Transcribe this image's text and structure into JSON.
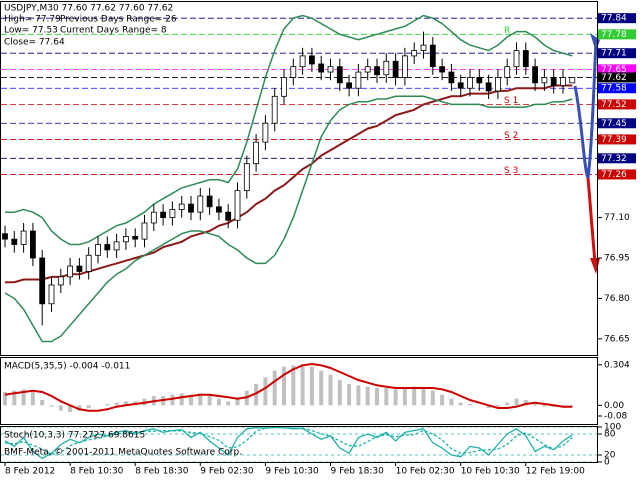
{
  "chart_data": [
    {
      "type": "candlestick",
      "title": "USDJPY,M30  77.60 77.62 77.60 77.62",
      "annotations": [
        "High= 77.79",
        "Previous Days Range= 26",
        "Low= 77.53",
        "Current Days Range= 8",
        "Close= 77.64"
      ],
      "categories": [
        "8 Feb 2012",
        null,
        null,
        null,
        null,
        null,
        null,
        "8 Feb 10:30",
        null,
        null,
        null,
        null,
        null,
        null,
        "8 Feb 18:30",
        null,
        null,
        null,
        null,
        null,
        null,
        "9 Feb 02:30",
        null,
        null,
        null,
        null,
        null,
        null,
        "9 Feb 10:30",
        null,
        null,
        null,
        null,
        null,
        null,
        "9 Feb 18:30",
        null,
        null,
        null,
        null,
        null,
        null,
        "10 Feb 02:30",
        null,
        null,
        null,
        null,
        null,
        null,
        "10 Feb 10:30",
        null,
        null,
        null,
        null,
        null,
        null,
        "12 Feb 19:00",
        null,
        null,
        null,
        null,
        null
      ],
      "open": [
        77.04,
        77.02,
        77.0,
        77.05,
        76.95,
        76.78,
        76.85,
        76.88,
        76.92,
        76.9,
        76.96,
        77.0,
        76.98,
        77.01,
        77.03,
        77.02,
        77.08,
        77.12,
        77.1,
        77.13,
        77.15,
        77.12,
        77.18,
        77.14,
        77.12,
        77.09,
        77.2,
        77.3,
        77.38,
        77.45,
        77.55,
        77.62,
        77.66,
        77.7,
        77.67,
        77.64,
        77.66,
        77.6,
        77.58,
        77.64,
        77.66,
        77.63,
        77.68,
        77.62,
        77.7,
        77.72,
        77.74,
        77.66,
        77.64,
        77.6,
        77.58,
        77.62,
        77.6,
        77.57,
        77.62,
        77.66,
        77.72,
        77.66,
        77.6,
        77.62,
        77.59,
        77.6
      ],
      "high": [
        77.07,
        77.05,
        77.08,
        77.08,
        76.98,
        76.88,
        76.91,
        76.95,
        76.95,
        76.99,
        77.03,
        77.03,
        77.04,
        77.06,
        77.06,
        77.11,
        77.15,
        77.15,
        77.16,
        77.18,
        77.18,
        77.21,
        77.21,
        77.17,
        77.15,
        77.23,
        77.33,
        77.41,
        77.48,
        77.58,
        77.65,
        77.69,
        77.73,
        77.73,
        77.7,
        77.69,
        77.69,
        77.63,
        77.67,
        77.69,
        77.69,
        77.71,
        77.71,
        77.73,
        77.75,
        77.79,
        77.77,
        77.69,
        77.67,
        77.63,
        77.65,
        77.65,
        77.63,
        77.65,
        77.69,
        77.75,
        77.75,
        77.69,
        77.65,
        77.65,
        77.65,
        77.62
      ],
      "low": [
        76.99,
        76.97,
        76.97,
        76.92,
        76.7,
        76.75,
        76.82,
        76.85,
        76.87,
        76.87,
        76.93,
        76.95,
        76.95,
        76.98,
        76.99,
        76.99,
        77.05,
        77.07,
        77.07,
        77.1,
        77.09,
        77.09,
        77.11,
        77.09,
        77.06,
        77.06,
        77.17,
        77.27,
        77.35,
        77.42,
        77.52,
        77.59,
        77.63,
        77.64,
        77.61,
        77.61,
        77.57,
        77.55,
        77.55,
        77.61,
        77.6,
        77.6,
        77.59,
        77.59,
        77.67,
        77.69,
        77.63,
        77.61,
        77.57,
        77.55,
        77.55,
        77.57,
        77.54,
        77.54,
        77.59,
        77.63,
        77.63,
        77.57,
        77.57,
        77.56,
        77.56,
        77.6
      ],
      "close": [
        77.02,
        77.0,
        77.05,
        76.95,
        76.78,
        76.85,
        76.88,
        76.92,
        76.9,
        76.96,
        77.0,
        76.98,
        77.01,
        77.03,
        77.02,
        77.08,
        77.12,
        77.1,
        77.13,
        77.15,
        77.12,
        77.18,
        77.14,
        77.12,
        77.09,
        77.2,
        77.3,
        77.38,
        77.45,
        77.55,
        77.62,
        77.66,
        77.7,
        77.67,
        77.64,
        77.66,
        77.6,
        77.58,
        77.64,
        77.66,
        77.63,
        77.68,
        77.62,
        77.7,
        77.72,
        77.74,
        77.66,
        77.64,
        77.6,
        77.58,
        77.62,
        77.6,
        77.57,
        77.62,
        77.66,
        77.72,
        77.66,
        77.6,
        77.62,
        77.59,
        77.62,
        77.62
      ],
      "series": [
        {
          "color": "#8b1a1a",
          "values": [
            76.86,
            76.86,
            76.87,
            76.87,
            76.87,
            76.88,
            76.88,
            76.89,
            76.89,
            76.9,
            76.91,
            76.92,
            76.93,
            76.94,
            76.95,
            76.96,
            76.97,
            76.99,
            77.0,
            77.01,
            77.03,
            77.04,
            77.05,
            77.07,
            77.08,
            77.1,
            77.12,
            77.15,
            77.17,
            77.2,
            77.22,
            77.25,
            77.28,
            77.3,
            77.33,
            77.35,
            77.37,
            77.39,
            77.41,
            77.43,
            77.44,
            77.46,
            77.48,
            77.49,
            77.5,
            77.52,
            77.53,
            77.54,
            77.55,
            77.55,
            77.56,
            77.56,
            77.56,
            77.57,
            77.57,
            77.58,
            77.58,
            77.58,
            77.58,
            77.59,
            77.59,
            77.59
          ]
        },
        {
          "color": "#2e8b57",
          "values": [
            77.12,
            77.12,
            77.13,
            77.12,
            77.1,
            77.05,
            77.02,
            77.0,
            77.0,
            77.01,
            77.03,
            77.05,
            77.07,
            77.08,
            77.1,
            77.12,
            77.15,
            77.17,
            77.19,
            77.21,
            77.22,
            77.23,
            77.24,
            77.24,
            77.23,
            77.28,
            77.38,
            77.5,
            77.62,
            77.72,
            77.8,
            77.84,
            77.85,
            77.84,
            77.82,
            77.8,
            77.78,
            77.77,
            77.76,
            77.77,
            77.78,
            77.79,
            77.8,
            77.81,
            77.83,
            77.85,
            77.84,
            77.82,
            77.79,
            77.76,
            77.74,
            77.73,
            77.72,
            77.74,
            77.77,
            77.79,
            77.79,
            77.77,
            77.74,
            77.72,
            77.71,
            77.7
          ]
        },
        {
          "color": "#2e8b57",
          "values": [
            76.82,
            76.8,
            76.76,
            76.7,
            76.64,
            76.64,
            76.66,
            76.7,
            76.74,
            76.78,
            76.82,
            76.86,
            76.89,
            76.91,
            76.94,
            76.96,
            76.98,
            77.0,
            77.02,
            77.04,
            77.05,
            77.05,
            77.04,
            77.03,
            77.0,
            76.98,
            76.95,
            76.93,
            76.93,
            76.96,
            77.02,
            77.1,
            77.2,
            77.3,
            77.4,
            77.46,
            77.5,
            77.52,
            77.53,
            77.53,
            77.54,
            77.54,
            77.55,
            77.55,
            77.55,
            77.55,
            77.54,
            77.53,
            77.52,
            77.52,
            77.52,
            77.52,
            77.51,
            77.51,
            77.51,
            77.51,
            77.51,
            77.52,
            77.52,
            77.53,
            77.53,
            77.54
          ]
        }
      ],
      "levels": [
        {
          "value": 77.84,
          "color": "#000080"
        },
        {
          "value": 77.78,
          "color": "#32cd32",
          "name": "R"
        },
        {
          "value": 77.71,
          "color": "#000080"
        },
        {
          "value": 77.65,
          "color": "#ff00ff"
        },
        {
          "value": 77.62,
          "color": "#000000"
        },
        {
          "value": 77.58,
          "color": "#0000ff"
        },
        {
          "value": 77.52,
          "color": "#cc0000",
          "name": "S 1"
        },
        {
          "value": 77.45,
          "color": "#000080"
        },
        {
          "value": 77.39,
          "color": "#cc0000",
          "name": "S 2"
        },
        {
          "value": 77.32,
          "color": "#000080"
        },
        {
          "value": 77.26,
          "color": "#cc0000",
          "name": "S 3"
        }
      ],
      "ylim": [
        76.59,
        77.9
      ],
      "yticks": [
        76.65,
        {
          "value": 76.8,
          "label": "76.80"
        },
        76.95,
        {
          "value": 77.1,
          "label": "77.10"
        }
      ]
    },
    {
      "type": "macd",
      "title": "MACD(5,35,5) -0.004 -0.011",
      "values": [
        0.1,
        0.11,
        0.12,
        0.1,
        0.04,
        -0.01,
        -0.04,
        -0.05,
        -0.04,
        -0.02,
        0.0,
        0.01,
        0.02,
        0.03,
        0.03,
        0.05,
        0.07,
        0.07,
        0.08,
        0.09,
        0.08,
        0.09,
        0.07,
        0.05,
        0.03,
        0.06,
        0.11,
        0.16,
        0.21,
        0.26,
        0.29,
        0.3,
        0.31,
        0.29,
        0.26,
        0.23,
        0.19,
        0.16,
        0.15,
        0.14,
        0.13,
        0.13,
        0.12,
        0.13,
        0.14,
        0.14,
        0.11,
        0.08,
        0.05,
        0.02,
        0.01,
        0.0,
        -0.02,
        -0.01,
        0.02,
        0.05,
        0.04,
        0.01,
        -0.01,
        -0.01,
        -0.01,
        -0.004
      ],
      "color": "#c0c0c0",
      "signal": [
        0.08,
        0.09,
        0.1,
        0.11,
        0.1,
        0.07,
        0.03,
        0.0,
        -0.03,
        -0.04,
        -0.04,
        -0.03,
        -0.01,
        0.0,
        0.01,
        0.02,
        0.03,
        0.04,
        0.05,
        0.06,
        0.07,
        0.08,
        0.08,
        0.07,
        0.06,
        0.05,
        0.06,
        0.09,
        0.13,
        0.18,
        0.23,
        0.27,
        0.3,
        0.31,
        0.3,
        0.28,
        0.25,
        0.22,
        0.19,
        0.17,
        0.15,
        0.14,
        0.13,
        0.13,
        0.13,
        0.13,
        0.13,
        0.12,
        0.1,
        0.07,
        0.04,
        0.02,
        0.0,
        -0.02,
        -0.02,
        -0.01,
        0.01,
        0.02,
        0.01,
        0.0,
        -0.01,
        -0.011
      ],
      "signal_color": "#cc0000",
      "ylim": [
        -0.14,
        0.355
      ],
      "yticks": [
        -0.08,
        {
          "value": 0,
          "label": "0.00"
        },
        0.304
      ]
    },
    {
      "type": "stochastic",
      "title": "Stoch(10,3,3) 77.2727 69.8615",
      "series": [
        {
          "color": "#20b2aa",
          "values": [
            60,
            45,
            70,
            30,
            10,
            25,
            50,
            65,
            55,
            70,
            80,
            75,
            85,
            90,
            80,
            90,
            95,
            85,
            90,
            92,
            70,
            85,
            60,
            40,
            20,
            70,
            95,
            98,
            97,
            99,
            98,
            95,
            96,
            80,
            65,
            75,
            40,
            25,
            70,
            80,
            70,
            85,
            60,
            85,
            90,
            95,
            55,
            40,
            20,
            15,
            45,
            40,
            20,
            50,
            80,
            95,
            75,
            30,
            45,
            35,
            60,
            77
          ]
        },
        {
          "color": "#20b2aa",
          "dashed": true,
          "values": [
            55,
            52,
            58,
            48,
            37,
            22,
            28,
            47,
            57,
            63,
            68,
            75,
            80,
            83,
            85,
            87,
            88,
            90,
            89,
            89,
            84,
            82,
            72,
            62,
            40,
            43,
            62,
            88,
            97,
            98,
            98,
            97,
            96,
            90,
            80,
            73,
            60,
            47,
            45,
            58,
            73,
            78,
            72,
            77,
            78,
            90,
            80,
            63,
            38,
            25,
            27,
            33,
            35,
            37,
            50,
            75,
            83,
            67,
            50,
            37,
            47,
            70
          ]
        }
      ],
      "ylim": [
        0,
        100
      ],
      "yticks": [
        0,
        20,
        80,
        100
      ],
      "grid": true
    }
  ],
  "copyright": "BMF-Meta, © 2001-2011 MetaQuotes Software Corp."
}
